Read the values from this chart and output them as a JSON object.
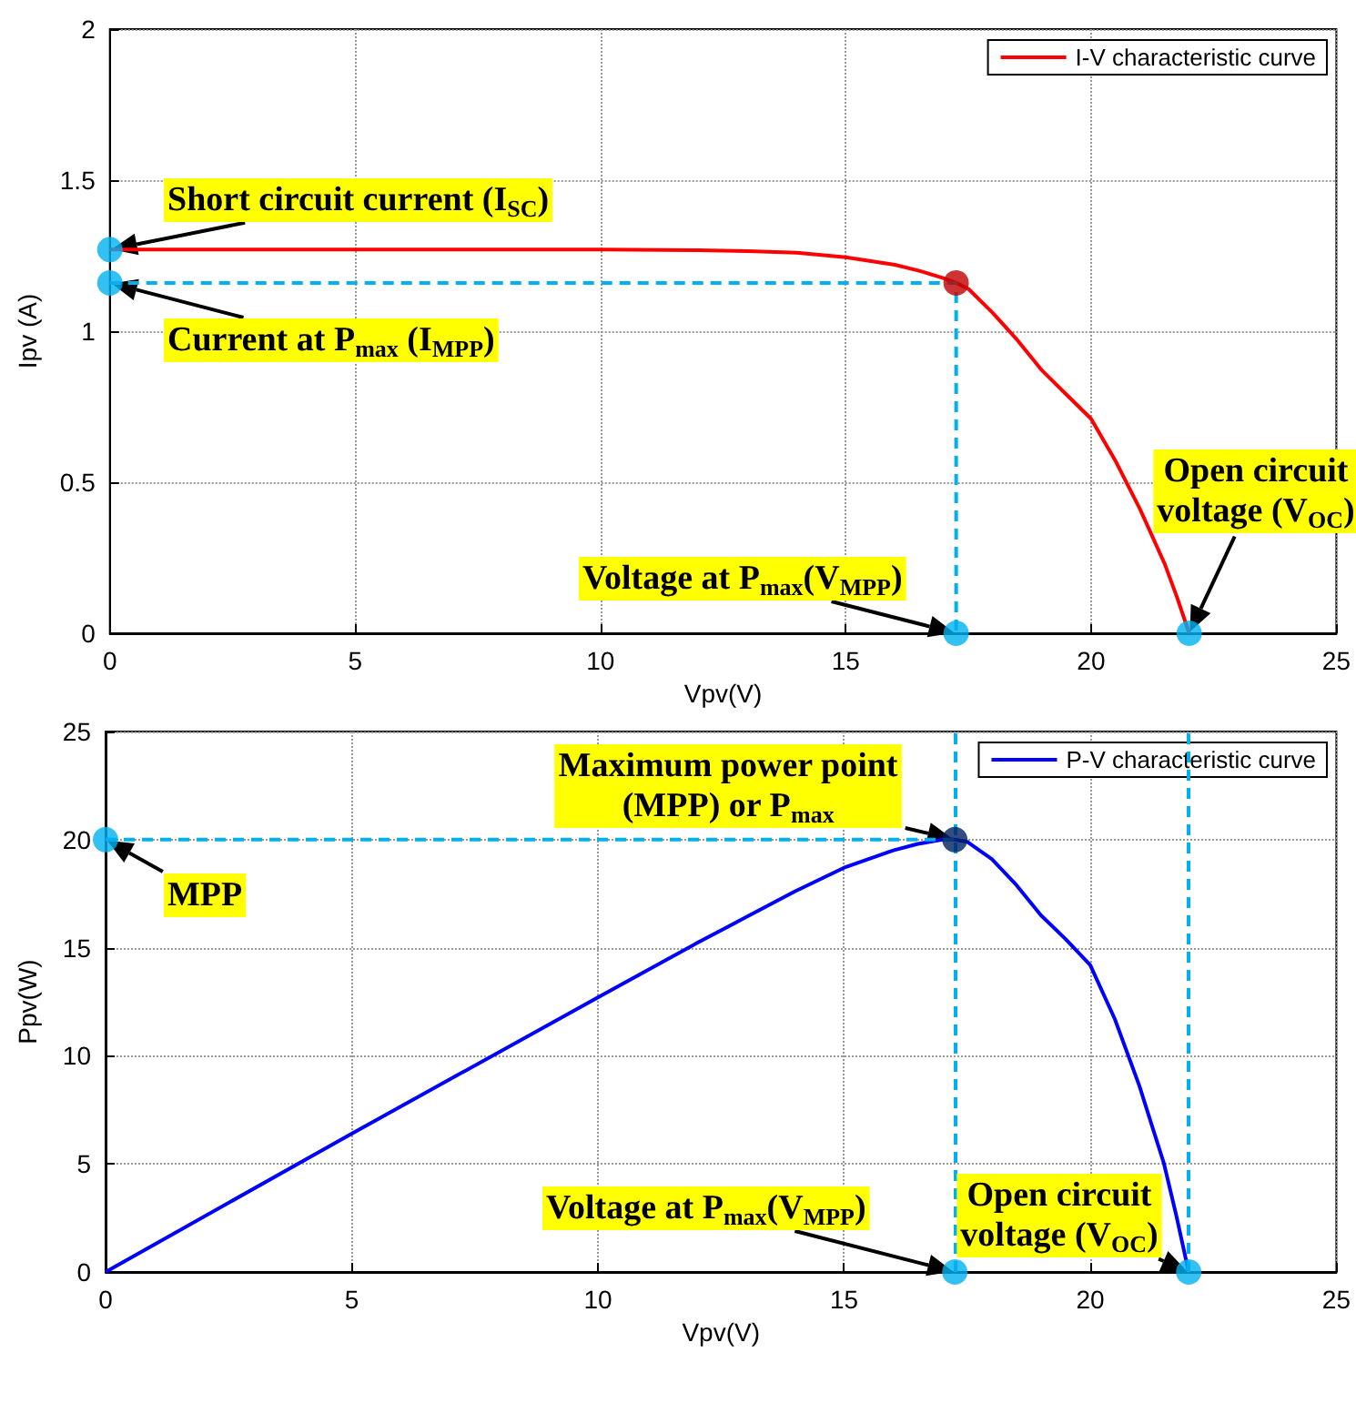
{
  "chart_data": [
    {
      "type": "line",
      "xlabel": "Vpv(V)",
      "ylabel": "Ipv (A)",
      "xlim": [
        0,
        25
      ],
      "xticks": [
        0,
        5,
        10,
        15,
        20,
        25
      ],
      "ylim": [
        0,
        2
      ],
      "yticks": [
        0,
        0.5,
        1,
        1.5,
        2
      ],
      "grid": true,
      "legend": "top right",
      "series": [
        {
          "name": "I-V characteristic curve",
          "color": "#ff0000",
          "x": [
            0,
            5,
            10,
            12,
            13,
            14,
            15,
            16,
            16.5,
            17,
            17.25,
            17.5,
            18,
            18.5,
            19,
            19.5,
            20,
            20.5,
            21,
            21.5,
            21.75,
            22
          ],
          "values": [
            1.27,
            1.27,
            1.27,
            1.268,
            1.265,
            1.26,
            1.245,
            1.22,
            1.2,
            1.175,
            1.16,
            1.14,
            1.06,
            0.97,
            0.87,
            0.79,
            0.71,
            0.57,
            0.41,
            0.23,
            0.12,
            0
          ]
        },
        {
          "type": "line",
          "line_style": "dashed",
          "color": "#00b0f0",
          "x": [
            0,
            17.25,
            17.25
          ],
          "values": [
            1.16,
            1.16,
            0
          ]
        },
        {
          "type": "scatter",
          "marker": "circle",
          "x": [
            0,
            0,
            17.25,
            17.25,
            22
          ],
          "values": [
            1.27,
            1.16,
            1.16,
            0,
            0
          ],
          "colors": [
            "#00b0f0",
            "#00b0f0",
            "#c00000",
            "#00b0f0",
            "#00b0f0"
          ]
        }
      ],
      "annotations": [
        {
          "text": "Short circuit current (I$_{SC}$)",
          "x": 0,
          "y": 1.27
        },
        {
          "text": "Current at P$_{max}$ (I$_{MPP}$)",
          "x": 0,
          "y": 1.16
        },
        {
          "text": "Voltage at P$_{max}$(V$_{MPP}$)",
          "x": 17.25,
          "y": 0
        },
        {
          "text": "Open circuit\nvoltage (V$_{OC}$)",
          "x": 22,
          "y": 0
        }
      ]
    },
    {
      "type": "line",
      "xlabel": "Vpv(V)",
      "ylabel": "Ppv(W)",
      "xlim": [
        0,
        25
      ],
      "xticks": [
        0,
        5,
        10,
        15,
        20,
        25
      ],
      "ylim": [
        0,
        25
      ],
      "yticks": [
        0,
        5,
        10,
        15,
        20,
        25
      ],
      "grid": true,
      "legend": "top right",
      "series": [
        {
          "name": "P-V characteristic curve",
          "color": "#0000ff",
          "x": [
            0,
            5,
            10,
            12,
            13,
            14,
            15,
            16,
            16.5,
            17,
            17.25,
            17.5,
            18,
            18.5,
            19,
            19.5,
            20,
            20.5,
            21,
            21.5,
            21.75,
            22
          ],
          "values": [
            0,
            6.4,
            12.7,
            15.2,
            16.4,
            17.6,
            18.7,
            19.5,
            19.8,
            20,
            20,
            19.9,
            19.1,
            17.9,
            16.5,
            15.4,
            14.2,
            11.7,
            8.6,
            5,
            2.6,
            0
          ]
        },
        {
          "type": "line",
          "line_style": "dashed",
          "color": "#00b0f0",
          "x": [
            0,
            17.25
          ],
          "values": [
            20,
            20
          ]
        },
        {
          "type": "scatter",
          "marker": "circle",
          "x": [
            0,
            17.25,
            17.25,
            22
          ],
          "values": [
            20,
            20,
            0,
            0
          ],
          "colors": [
            "#00b0f0",
            "#002060",
            "#00b0f0",
            "#00b0f0"
          ]
        }
      ],
      "ref_lines": [
        {
          "axis": "x",
          "value": 17.25,
          "color": "#00b0f0",
          "line_style": "dashed"
        },
        {
          "axis": "x",
          "value": 22,
          "color": "#00b0f0",
          "line_style": "dashed"
        }
      ],
      "annotations": [
        {
          "text": "Maximum power point\n(MPP) or P$_{max}$",
          "x": 17.25,
          "y": 20
        },
        {
          "text": "MPP",
          "x": 0,
          "y": 20
        },
        {
          "text": "Voltage at P$_{max}$(V$_{MPP}$)",
          "x": 17.25,
          "y": 0
        },
        {
          "text": "Open circuit\nvoltage (V$_{OC}$)",
          "x": 22,
          "y": 0
        }
      ]
    }
  ]
}
